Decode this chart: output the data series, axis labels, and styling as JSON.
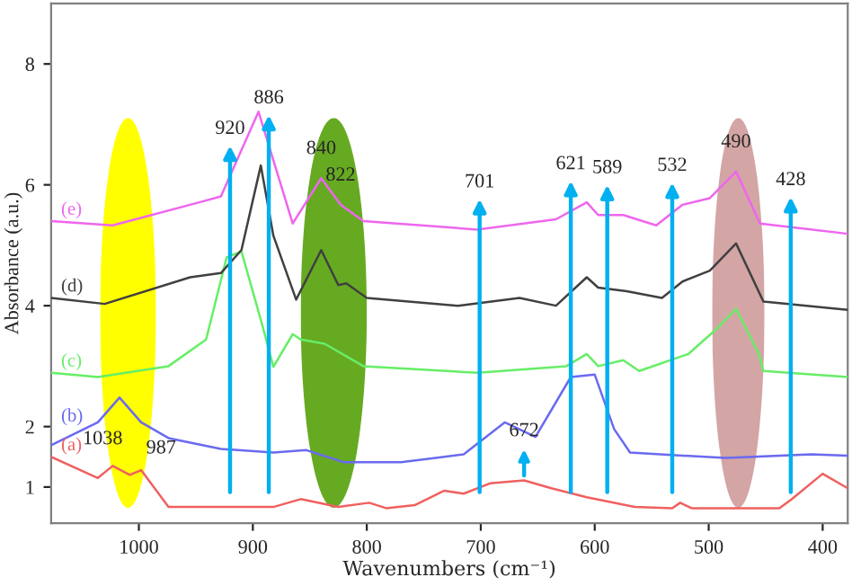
{
  "chart_data": {
    "type": "line",
    "xlabel": "Wavenumbers (cm⁻¹)",
    "ylabel": "Absorbance (a.u.)",
    "xlim": [
      1077,
      378
    ],
    "xticks": [
      1000,
      900,
      800,
      700,
      600,
      500,
      400
    ],
    "ylim": [
      0.4,
      9
    ],
    "yticks": [
      1,
      2,
      4,
      6,
      8
    ],
    "grid": false,
    "legend": false,
    "marker": "none",
    "line_style": "solid",
    "series": [
      {
        "name": "(a)",
        "color": "#f06060",
        "x": [
          1077,
          1036,
          1023,
          1008,
          998,
          974,
          882,
          858,
          825,
          798,
          783,
          758,
          732,
          715,
          692,
          662,
          638,
          607,
          565,
          532,
          525,
          515,
          438,
          427,
          400,
          378
        ],
        "values": [
          1.5,
          1.15,
          1.35,
          1.2,
          1.28,
          0.67,
          0.67,
          0.8,
          0.67,
          0.74,
          0.65,
          0.7,
          0.94,
          0.89,
          1.06,
          1.11,
          0.98,
          0.83,
          0.67,
          0.65,
          0.74,
          0.65,
          0.65,
          0.8,
          1.22,
          0.98
        ]
      },
      {
        "name": "(b)",
        "color": "#6a6af0",
        "x": [
          1077,
          1036,
          1017,
          998,
          974,
          928,
          882,
          853,
          820,
          770,
          715,
          679,
          652,
          621,
          600,
          583,
          569,
          485,
          410,
          378
        ],
        "values": [
          1.69,
          2.07,
          2.48,
          2.07,
          1.81,
          1.63,
          1.57,
          1.61,
          1.41,
          1.41,
          1.54,
          2.07,
          1.83,
          2.82,
          2.86,
          1.96,
          1.57,
          1.48,
          1.54,
          1.52
        ]
      },
      {
        "name": "(c)",
        "color": "#66ee66",
        "x": [
          1077,
          1036,
          974,
          941,
          923,
          910,
          892,
          882,
          865,
          858,
          837,
          803,
          703,
          625,
          607,
          597,
          575,
          561,
          518,
          494,
          476,
          456,
          452,
          378
        ],
        "values": [
          2.89,
          2.82,
          3.0,
          3.44,
          4.8,
          4.9,
          3.7,
          2.99,
          3.53,
          3.44,
          3.37,
          3.0,
          2.89,
          3.0,
          3.2,
          3.0,
          3.1,
          2.92,
          3.2,
          3.6,
          3.95,
          3.2,
          2.92,
          2.82
        ]
      },
      {
        "name": "(d)",
        "color": "#404040",
        "x": [
          1077,
          1030,
          955,
          928,
          910,
          893,
          882,
          862,
          840,
          825,
          818,
          800,
          720,
          666,
          634,
          607,
          597,
          572,
          541,
          523,
          499,
          476,
          452,
          378
        ],
        "values": [
          4.13,
          4.03,
          4.47,
          4.54,
          4.92,
          6.32,
          5.16,
          4.1,
          4.92,
          4.34,
          4.37,
          4.13,
          4.0,
          4.13,
          4.0,
          4.47,
          4.3,
          4.24,
          4.13,
          4.4,
          4.58,
          5.03,
          4.07,
          3.93
        ]
      },
      {
        "name": "(e)",
        "color": "#ee66ee",
        "x": [
          1077,
          1023,
          947,
          928,
          895,
          865,
          840,
          823,
          803,
          703,
          634,
          607,
          597,
          575,
          546,
          523,
          499,
          476,
          455,
          378
        ],
        "values": [
          5.4,
          5.33,
          5.71,
          5.81,
          7.21,
          5.36,
          6.11,
          5.67,
          5.4,
          5.26,
          5.43,
          5.71,
          5.5,
          5.5,
          5.33,
          5.67,
          5.78,
          6.22,
          5.36,
          5.19
        ]
      }
    ],
    "bands": [
      {
        "axis": "x",
        "from": 1034,
        "to": 985,
        "color": "#ffff00"
      },
      {
        "axis": "x",
        "from": 858,
        "to": 800,
        "color": "#66aa22"
      },
      {
        "axis": "x",
        "from": 497,
        "to": 451,
        "color": "#d4a5a5"
      }
    ],
    "ref_lines": [
      {
        "axis": "x",
        "value": 920,
        "label": "920",
        "color": "#00b0f0"
      },
      {
        "axis": "x",
        "value": 886,
        "label": "886",
        "color": "#00b0f0"
      },
      {
        "axis": "x",
        "value": 701,
        "label": "701",
        "color": "#00b0f0"
      },
      {
        "axis": "x",
        "value": 621,
        "label": "621",
        "color": "#00b0f0"
      },
      {
        "axis": "x",
        "value": 589,
        "label": "589",
        "color": "#00b0f0"
      },
      {
        "axis": "x",
        "value": 532,
        "label": "532",
        "color": "#00b0f0"
      },
      {
        "axis": "x",
        "value": 428,
        "label": "428",
        "color": "#00b0f0"
      }
    ],
    "annotations": [
      {
        "text": "840",
        "x": 840,
        "y": 6.11
      },
      {
        "text": "822",
        "x": 823,
        "y": 5.67
      },
      {
        "text": "490",
        "x": 476,
        "y": 6.22
      },
      {
        "text": "672",
        "x": 662,
        "y": 1.11
      },
      {
        "text": "1038",
        "x": 1023,
        "y": 1.35
      },
      {
        "text": "987",
        "x": 998,
        "y": 1.28
      }
    ]
  }
}
